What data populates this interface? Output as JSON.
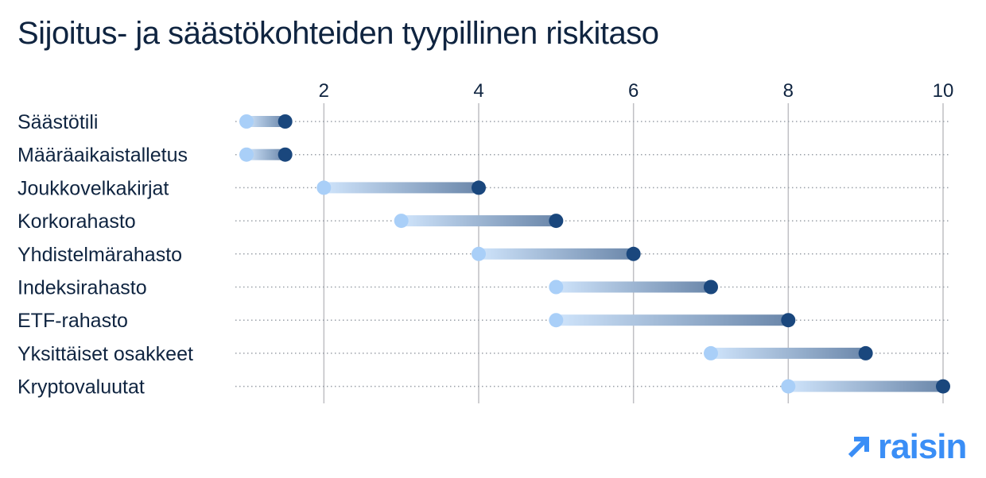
{
  "colors": {
    "text": "#0f2440",
    "low_marker": "#a9cff8",
    "high_marker": "#1a477d",
    "grid_solid": "#bfbfc4",
    "grid_dotted": "#9aa0a8",
    "brand": "#3a8ef6"
  },
  "brand": {
    "name": "raisin",
    "icon": "arrow-up-right-icon"
  },
  "chart_data": {
    "type": "dumbbell",
    "title": "Sijoitus- ja säästökohteiden tyypillinen riskitaso",
    "xlabel": "",
    "ylabel": "",
    "xlim": [
      1,
      10
    ],
    "xticks": [
      2,
      4,
      6,
      8,
      10
    ],
    "grid": true,
    "categories": [
      "Säästötili",
      "Määräaikaistalletus",
      "Joukkovelkakirjat",
      "Korkorahasto",
      "Yhdistelmärahasto",
      "Indeksirahasto",
      "ETF-rahasto",
      "Yksittäiset osakkeet",
      "Kryptovaluutat"
    ],
    "series": [
      {
        "values": [
          1,
          1,
          2,
          3,
          4,
          5,
          5,
          7,
          8
        ]
      },
      {
        "values": [
          1.5,
          1.5,
          4,
          5,
          6,
          7,
          8,
          9,
          10
        ]
      }
    ]
  }
}
